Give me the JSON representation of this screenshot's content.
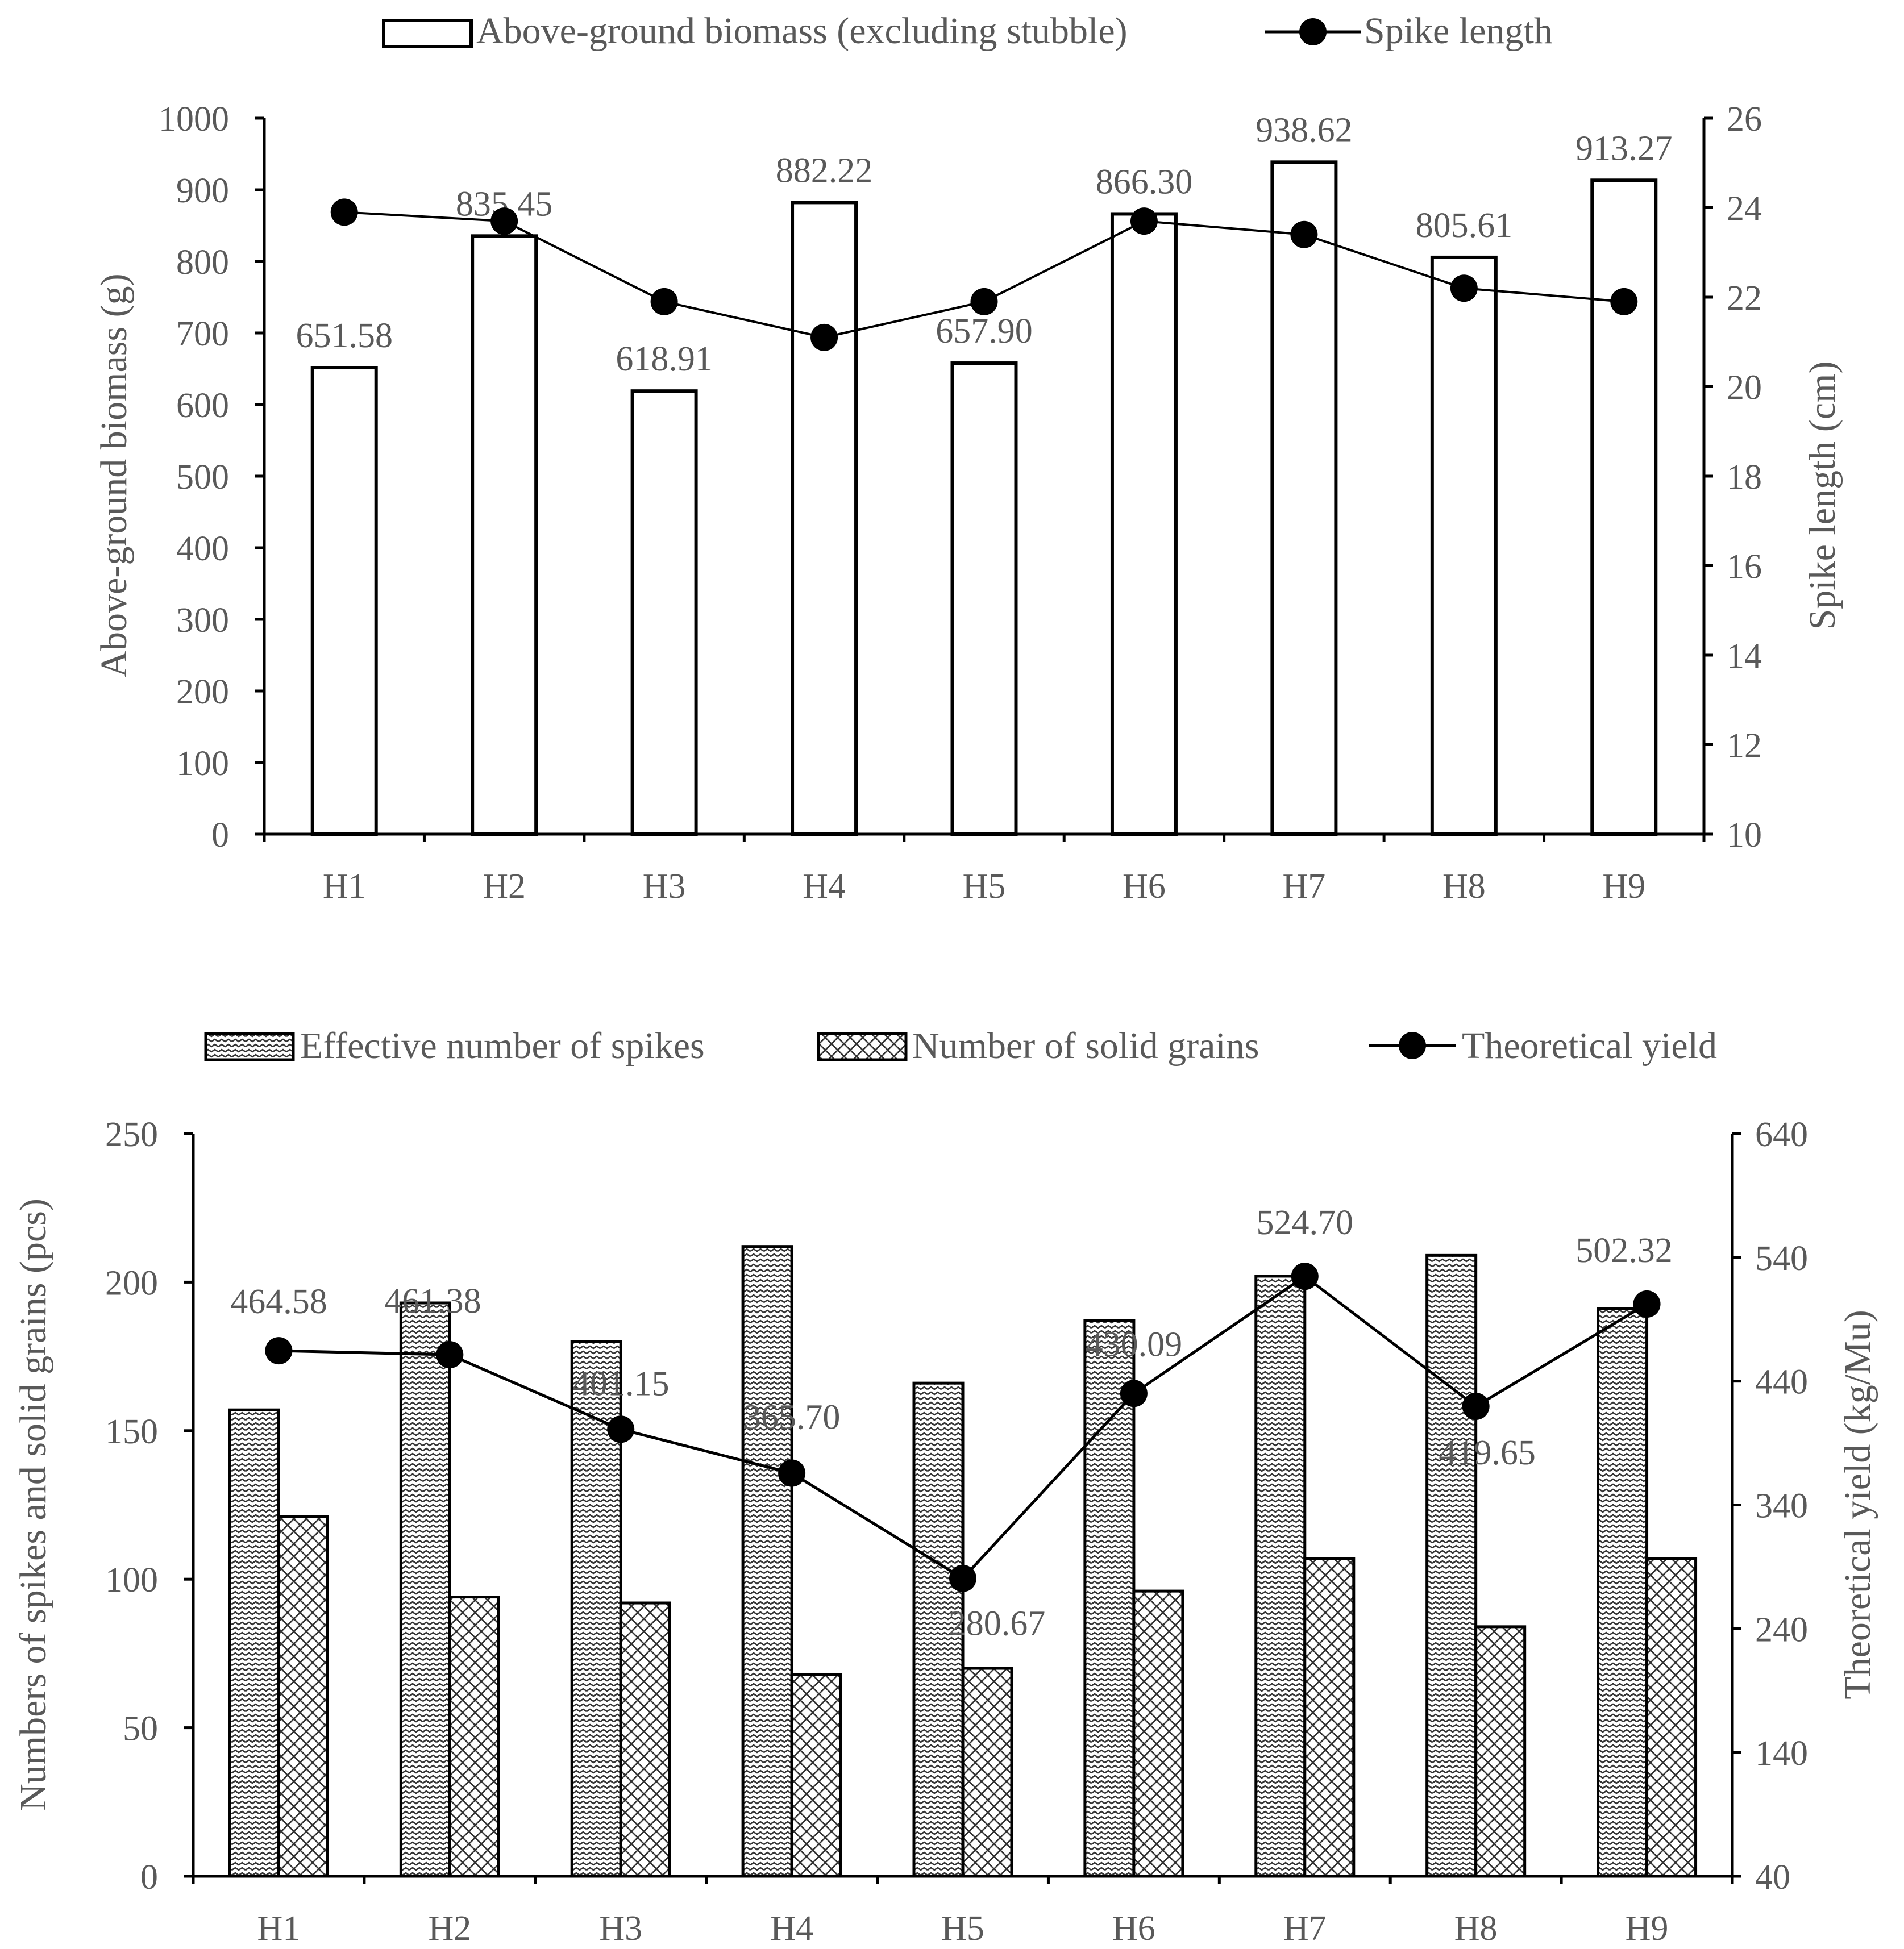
{
  "chart_data": [
    {
      "type": "bar",
      "categories": [
        "H1",
        "H2",
        "H3",
        "H4",
        "H5",
        "H6",
        "H7",
        "H8",
        "H9"
      ],
      "series": [
        {
          "name": "Above-ground biomass (excluding stubble)",
          "kind": "bar",
          "axis": "left",
          "values": [
            651.58,
            835.45,
            618.91,
            882.22,
            657.9,
            866.3,
            938.62,
            805.61,
            913.27
          ],
          "labels": [
            "651.58",
            "835.45",
            "618.91",
            "882.22",
            "657.90",
            "866.30",
            "938.62",
            "805.61",
            "913.27"
          ]
        },
        {
          "name": "Spike length",
          "kind": "line",
          "axis": "right",
          "values": [
            23.9,
            23.7,
            21.9,
            21.1,
            21.9,
            23.7,
            23.4,
            22.2,
            21.9
          ]
        }
      ],
      "ylabel": "Above-ground biomass (g)",
      "ylim": [
        0,
        1000
      ],
      "yticks": [
        "0",
        "100",
        "200",
        "300",
        "400",
        "500",
        "600",
        "700",
        "800",
        "900",
        "1000"
      ],
      "y2label": "Spike length (cm)",
      "y2lim": [
        10,
        26
      ],
      "y2ticks": [
        "10",
        "12",
        "14",
        "16",
        "18",
        "20",
        "22",
        "24",
        "26"
      ],
      "legend": "top"
    },
    {
      "type": "bar",
      "categories": [
        "H1",
        "H2",
        "H3",
        "H4",
        "H5",
        "H6",
        "H7",
        "H8",
        "H9"
      ],
      "series": [
        {
          "name": "Effective number of spikes",
          "kind": "bar",
          "axis": "left",
          "values": [
            157,
            193,
            180,
            212,
            166,
            187,
            202,
            209,
            191
          ]
        },
        {
          "name": "Number of solid grains",
          "kind": "bar",
          "axis": "left",
          "values": [
            121,
            94,
            92,
            68,
            70,
            96,
            107,
            84,
            107
          ]
        },
        {
          "name": "Theoretical yield",
          "kind": "line",
          "axis": "right",
          "values": [
            464.58,
            461.38,
            401.15,
            365.7,
            280.67,
            430.09,
            524.7,
            419.65,
            502.32
          ],
          "labels": [
            "464.58",
            "461.38",
            "401.15",
            "365.70",
            "280.67",
            "430.09",
            "524.70",
            "419.65",
            "502.32"
          ]
        }
      ],
      "ylabel": "Numbers of spikes and solid grains (pcs)",
      "ylim": [
        0,
        250
      ],
      "yticks": [
        "0",
        "50",
        "100",
        "150",
        "200",
        "250"
      ],
      "y2label": "Theoretical yield (kg/Mu)",
      "y2lim": [
        40,
        640
      ],
      "y2ticks": [
        "40",
        "140",
        "240",
        "340",
        "440",
        "540",
        "640"
      ],
      "legend": "top"
    }
  ]
}
